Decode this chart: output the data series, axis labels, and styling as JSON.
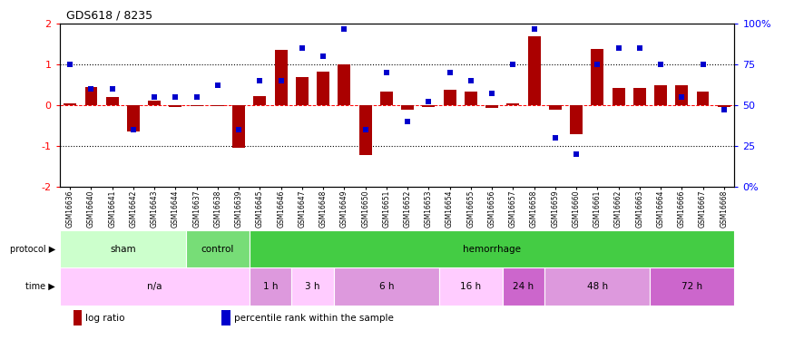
{
  "title": "GDS618 / 8235",
  "samples": [
    "GSM16636",
    "GSM16640",
    "GSM16641",
    "GSM16642",
    "GSM16643",
    "GSM16644",
    "GSM16637",
    "GSM16638",
    "GSM16639",
    "GSM16645",
    "GSM16646",
    "GSM16647",
    "GSM16648",
    "GSM16649",
    "GSM16650",
    "GSM16651",
    "GSM16652",
    "GSM16653",
    "GSM16654",
    "GSM16655",
    "GSM16656",
    "GSM16657",
    "GSM16658",
    "GSM16659",
    "GSM16660",
    "GSM16661",
    "GSM16662",
    "GSM16663",
    "GSM16664",
    "GSM16666",
    "GSM16667",
    "GSM16668"
  ],
  "log_ratio": [
    0.05,
    0.45,
    0.2,
    -0.65,
    0.1,
    -0.05,
    -0.02,
    -0.03,
    -1.05,
    0.22,
    1.35,
    0.7,
    0.82,
    1.0,
    -1.22,
    0.33,
    -0.12,
    -0.05,
    0.38,
    0.33,
    -0.06,
    0.05,
    1.7,
    -0.12,
    -0.72,
    1.38,
    0.43,
    0.43,
    0.48,
    0.48,
    0.33,
    -0.04
  ],
  "percentile": [
    75,
    60,
    60,
    35,
    55,
    55,
    55,
    62,
    35,
    65,
    65,
    85,
    80,
    97,
    35,
    70,
    40,
    52,
    70,
    65,
    57,
    75,
    97,
    30,
    20,
    75,
    85,
    85,
    75,
    55,
    75,
    47
  ],
  "ylim": [
    -2,
    2
  ],
  "yticks_left": [
    -2,
    -1,
    0,
    1,
    2
  ],
  "hlines_dotted": [
    1.0,
    -1.0
  ],
  "hline_zero": 0.0,
  "bar_color": "#aa0000",
  "dot_color": "#0000cc",
  "bg_color": "#ffffff",
  "protocol_groups": [
    {
      "label": "sham",
      "start": 0,
      "end": 6,
      "color": "#ccffcc"
    },
    {
      "label": "control",
      "start": 6,
      "end": 9,
      "color": "#77dd77"
    },
    {
      "label": "hemorrhage",
      "start": 9,
      "end": 32,
      "color": "#44cc44"
    }
  ],
  "time_groups": [
    {
      "label": "n/a",
      "start": 0,
      "end": 9,
      "color": "#ffccff"
    },
    {
      "label": "1 h",
      "start": 9,
      "end": 11,
      "color": "#dd99dd"
    },
    {
      "label": "3 h",
      "start": 11,
      "end": 13,
      "color": "#ffccff"
    },
    {
      "label": "6 h",
      "start": 13,
      "end": 18,
      "color": "#dd99dd"
    },
    {
      "label": "16 h",
      "start": 18,
      "end": 21,
      "color": "#ffccff"
    },
    {
      "label": "24 h",
      "start": 21,
      "end": 23,
      "color": "#cc66cc"
    },
    {
      "label": "48 h",
      "start": 23,
      "end": 28,
      "color": "#dd99dd"
    },
    {
      "label": "72 h",
      "start": 28,
      "end": 32,
      "color": "#cc66cc"
    }
  ],
  "legend_items": [
    {
      "label": "log ratio",
      "color": "#aa0000"
    },
    {
      "label": "percentile rank within the sample",
      "color": "#0000cc"
    }
  ]
}
